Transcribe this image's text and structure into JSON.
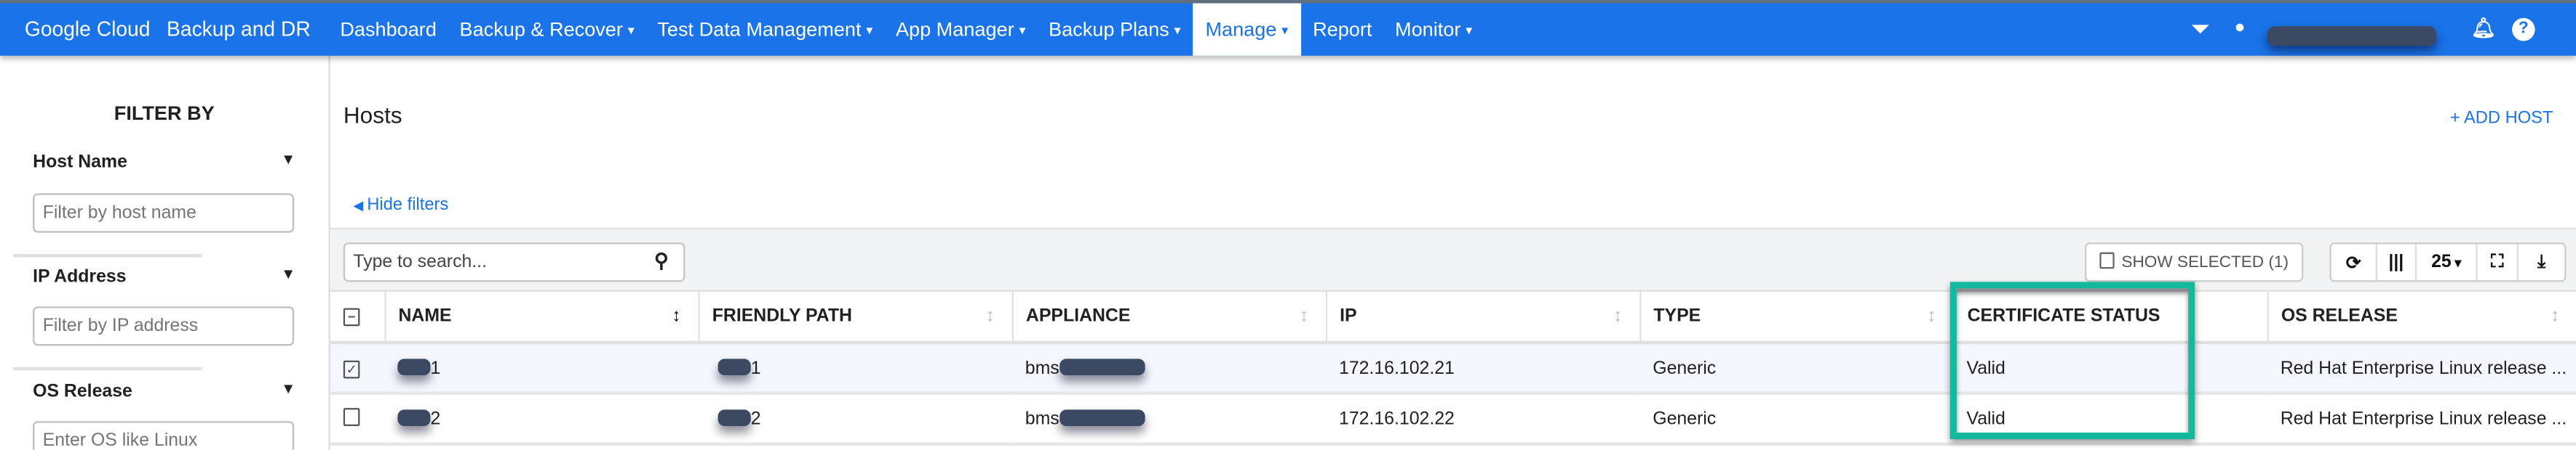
{
  "header": {
    "brand": "Google Cloud",
    "product": "Backup and DR",
    "nav": [
      {
        "label": "Dashboard",
        "dropdown": false
      },
      {
        "label": "Backup & Recover",
        "dropdown": true
      },
      {
        "label": "Test Data Management",
        "dropdown": true
      },
      {
        "label": "App Manager",
        "dropdown": true
      },
      {
        "label": "Backup Plans",
        "dropdown": true
      },
      {
        "label": "Manage",
        "dropdown": true,
        "active": true
      },
      {
        "label": "Report",
        "dropdown": false
      },
      {
        "label": "Monitor",
        "dropdown": true
      }
    ],
    "icons": [
      "filter-icon",
      "user-icon",
      "bell-icon",
      "help-icon"
    ],
    "accent": "#1a73e8"
  },
  "sidebar": {
    "title": "FILTER BY",
    "filters": [
      {
        "label": "Host Name",
        "placeholder": "Filter by host name"
      },
      {
        "label": "IP Address",
        "placeholder": "Filter by IP address"
      },
      {
        "label": "OS Release",
        "placeholder": "Enter OS like Linux"
      }
    ]
  },
  "main": {
    "title": "Hosts",
    "add_host": "+ ADD HOST",
    "hide_filters": "Hide filters",
    "search_placeholder": "Type to search...",
    "show_selected": "SHOW SELECTED (1)",
    "page_size": "25",
    "columns": [
      "NAME",
      "FRIENDLY PATH",
      "APPLIANCE",
      "IP",
      "TYPE",
      "CERTIFICATE STATUS",
      "OS RELEASE"
    ],
    "rows": [
      {
        "selected": true,
        "name": "1",
        "friendly_path": "1",
        "appliance": "bms",
        "ip": "172.16.102.21",
        "type": "Generic",
        "certificate_status": "Valid",
        "os_release": "Red Hat Enterprise Linux release ..."
      },
      {
        "selected": false,
        "name": "2",
        "friendly_path": "2",
        "appliance": "bms",
        "ip": "172.16.102.22",
        "type": "Generic",
        "certificate_status": "Valid",
        "os_release": "Red Hat Enterprise Linux release ..."
      }
    ],
    "highlight_color": "#14b89c"
  }
}
